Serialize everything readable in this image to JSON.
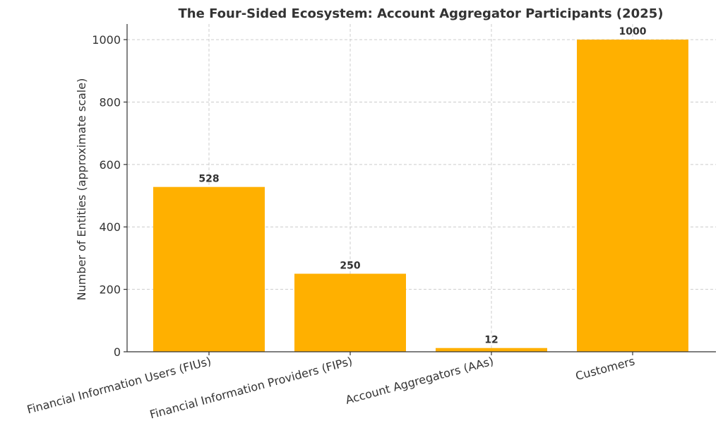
{
  "chart_data": {
    "type": "bar",
    "title": "The Four-Sided Ecosystem: Account Aggregator Participants (2025)",
    "xlabel": "",
    "ylabel": "Number of Entities (approximate scale)",
    "categories": [
      "Financial Information Users (FIUs)",
      "Financial Information Providers (FIPs)",
      "Account Aggregators (AAs)",
      "Customers"
    ],
    "values": [
      528,
      250,
      12,
      1000
    ],
    "data_labels": [
      "528",
      "250",
      "12",
      "1000"
    ],
    "ylim": [
      0,
      1050
    ],
    "yticks": [
      0,
      200,
      400,
      600,
      800,
      1000
    ],
    "ytick_labels": [
      "0",
      "200",
      "400",
      "600",
      "800",
      "1000"
    ],
    "grid": true,
    "bar_color": "#FFB000",
    "legend": "none"
  }
}
